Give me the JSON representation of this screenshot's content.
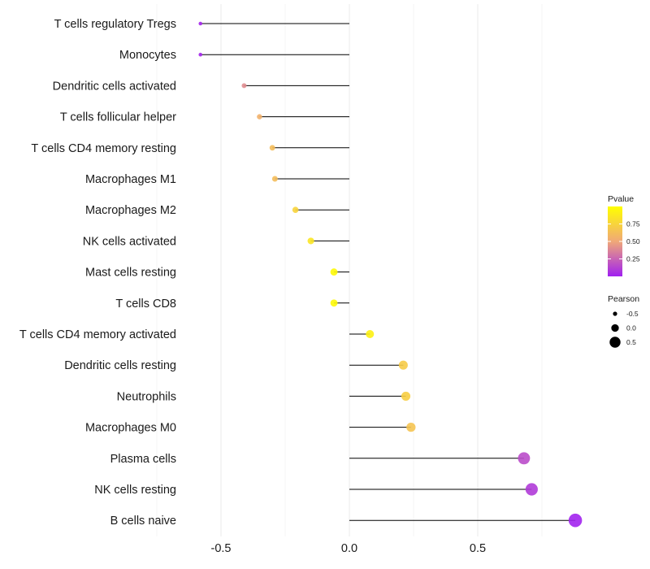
{
  "chart_data": {
    "type": "lollipop",
    "title": "",
    "xlabel": "",
    "ylabel": "",
    "xlim": [
      -0.65,
      0.93
    ],
    "x_ticks": [
      -0.5,
      0.0,
      0.5
    ],
    "x_tick_labels": [
      "-0.5",
      "0.0",
      "0.5"
    ],
    "grid": true,
    "baseline": 0,
    "categories": [
      "T cells regulatory  Tregs",
      "Monocytes",
      "Dendritic cells activated",
      "T cells follicular helper",
      "T cells CD4 memory resting",
      "Macrophages M1",
      "Macrophages M2",
      "NK cells activated",
      "Mast cells resting",
      "T cells CD8",
      "T cells CD4 memory activated",
      "Dendritic cells resting",
      "Neutrophils",
      "Macrophages M0",
      "Plasma cells",
      "NK cells resting",
      "B cells naive"
    ],
    "pearson": [
      -0.58,
      -0.58,
      -0.41,
      -0.35,
      -0.3,
      -0.29,
      -0.21,
      -0.15,
      -0.06,
      -0.06,
      0.08,
      0.21,
      0.22,
      0.24,
      0.68,
      0.71,
      0.88
    ],
    "pvalue": [
      0.02,
      0.02,
      0.4,
      0.55,
      0.62,
      0.62,
      0.75,
      0.85,
      0.97,
      0.97,
      0.92,
      0.7,
      0.72,
      0.66,
      0.16,
      0.1,
      0.01
    ],
    "legend_color": {
      "title": "Pvalue",
      "ticks": [
        "0.75",
        "0.50",
        "0.25"
      ],
      "tick_values": [
        0.75,
        0.5,
        0.25
      ],
      "range": [
        0.0,
        1.0
      ],
      "colors": [
        "#a020f0",
        "#f0a878",
        "#ffff00"
      ],
      "position": "right"
    },
    "legend_size": {
      "title": "Pearson",
      "labels": [
        "-0.5",
        "0.0",
        "0.5"
      ],
      "values": [
        -0.5,
        0.0,
        0.5
      ],
      "position": "right"
    }
  }
}
